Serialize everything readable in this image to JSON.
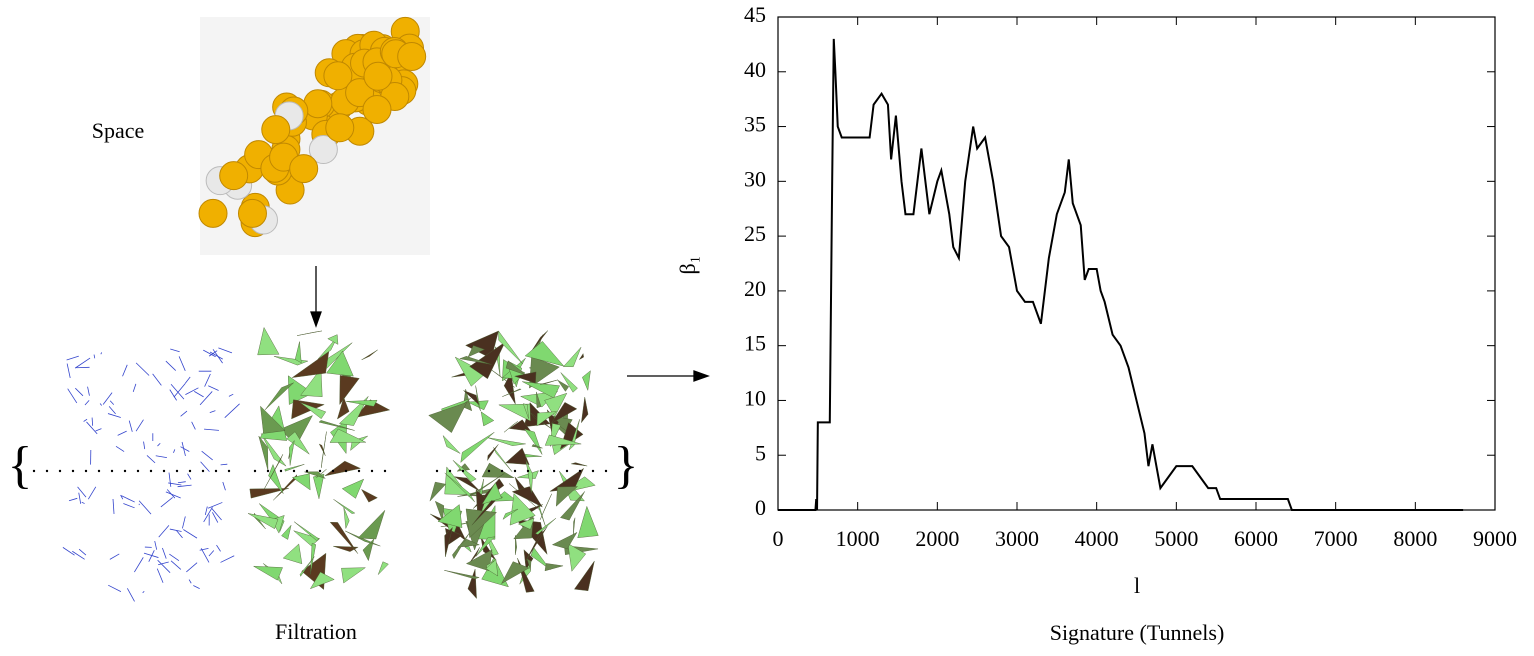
{
  "figure": {
    "space_label": "Space",
    "filtration_label": "Filtration",
    "brace_open": "{",
    "brace_close": "}"
  },
  "chart_data": {
    "type": "line",
    "caption": "Signature (Tunnels)",
    "xlabel": "l",
    "ylabel": "β₁",
    "xlim": [
      0,
      9000
    ],
    "ylim": [
      0,
      45
    ],
    "xticks": [
      0,
      1000,
      2000,
      3000,
      4000,
      5000,
      6000,
      7000,
      8000,
      9000
    ],
    "yticks": [
      0,
      5,
      10,
      15,
      20,
      25,
      30,
      35,
      40,
      45
    ],
    "grid": false,
    "series": [
      {
        "name": "β₁",
        "color": "#000000",
        "x": [
          0,
          470,
          480,
          490,
          500,
          600,
          650,
          680,
          700,
          720,
          750,
          800,
          1000,
          1150,
          1200,
          1300,
          1380,
          1420,
          1480,
          1550,
          1600,
          1700,
          1800,
          1900,
          2000,
          2050,
          2150,
          2200,
          2270,
          2350,
          2450,
          2500,
          2600,
          2700,
          2800,
          2900,
          3000,
          3100,
          3200,
          3300,
          3400,
          3500,
          3600,
          3650,
          3700,
          3800,
          3850,
          3900,
          4000,
          4050,
          4100,
          4200,
          4300,
          4400,
          4500,
          4600,
          4650,
          4700,
          4800,
          4900,
          5000,
          5200,
          5300,
          5400,
          5500,
          5550,
          6000,
          6400,
          6450,
          7000,
          8000,
          8600
        ],
        "values": [
          0,
          0,
          1,
          0,
          8,
          8,
          8,
          30,
          43,
          40,
          35,
          34,
          34,
          34,
          37,
          38,
          37,
          32,
          36,
          30,
          27,
          27,
          33,
          27,
          30,
          31,
          27,
          24,
          23,
          30,
          35,
          33,
          34,
          30,
          25,
          24,
          20,
          19,
          19,
          17,
          23,
          27,
          29,
          32,
          28,
          26,
          21,
          22,
          22,
          20,
          19,
          16,
          15,
          13,
          10,
          7,
          4,
          6,
          2,
          3,
          4,
          4,
          3,
          2,
          2,
          1,
          1,
          1,
          0,
          0,
          0,
          0
        ]
      }
    ]
  }
}
